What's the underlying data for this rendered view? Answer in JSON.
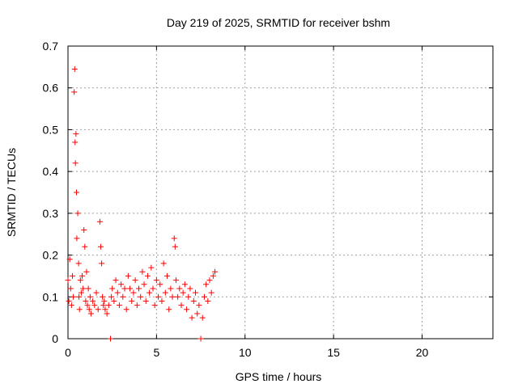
{
  "chart_data": {
    "type": "scatter",
    "title": "Day 219 of 2025, SRMTID for receiver bshm",
    "xlabel": "GPS time / hours",
    "ylabel": "SRMTID / TECUs",
    "xlim": [
      0,
      24
    ],
    "ylim": [
      0,
      0.7
    ],
    "x_ticks": [
      0,
      5,
      10,
      15,
      20
    ],
    "y_ticks": [
      0,
      0.1,
      0.2,
      0.3,
      0.4,
      0.5,
      0.6,
      0.7
    ],
    "y_tick_labels": [
      "0",
      "0.1",
      "0.2",
      "0.3",
      "0.4",
      "0.5",
      "0.6",
      "0.7"
    ],
    "grid": true,
    "legend": "none",
    "marker": "+",
    "color": "#ff0000",
    "series": [
      {
        "x": [
          0.0,
          0.05,
          0.1,
          0.15,
          0.2,
          0.25,
          0.3,
          0.35,
          0.38,
          0.4,
          0.42,
          0.45,
          0.48,
          0.5,
          0.55,
          0.6,
          0.62,
          0.65,
          0.7,
          0.75,
          0.8,
          0.85,
          0.9,
          0.95,
          1.0,
          1.05,
          1.1,
          1.15,
          1.2,
          1.25,
          1.3,
          1.4,
          1.5,
          1.6,
          1.7,
          1.8,
          1.85,
          1.9,
          1.95,
          2.0,
          2.05,
          2.1,
          2.2,
          2.3,
          2.4,
          2.45,
          2.5,
          2.6,
          2.7,
          2.8,
          2.9,
          3.0,
          3.1,
          3.2,
          3.3,
          3.4,
          3.5,
          3.6,
          3.7,
          3.8,
          3.9,
          4.0,
          4.1,
          4.2,
          4.3,
          4.4,
          4.5,
          4.6,
          4.7,
          4.8,
          4.9,
          5.0,
          5.1,
          5.2,
          5.3,
          5.4,
          5.5,
          5.6,
          5.7,
          5.8,
          5.9,
          6.0,
          6.05,
          6.1,
          6.2,
          6.3,
          6.4,
          6.5,
          6.6,
          6.7,
          6.8,
          6.9,
          7.0,
          7.1,
          7.2,
          7.3,
          7.4,
          7.5,
          7.6,
          7.7,
          7.8,
          7.9,
          8.0,
          8.1,
          8.2,
          8.3
        ],
        "y": [
          0.14,
          0.09,
          0.19,
          0.12,
          0.08,
          0.15,
          0.1,
          0.59,
          0.645,
          0.47,
          0.42,
          0.49,
          0.35,
          0.24,
          0.3,
          0.18,
          0.1,
          0.07,
          0.14,
          0.11,
          0.15,
          0.12,
          0.26,
          0.22,
          0.09,
          0.16,
          0.08,
          0.12,
          0.07,
          0.1,
          0.06,
          0.09,
          0.08,
          0.11,
          0.07,
          0.28,
          0.22,
          0.18,
          0.1,
          0.08,
          0.09,
          0.07,
          0.06,
          0.08,
          0.0,
          0.1,
          0.12,
          0.09,
          0.14,
          0.11,
          0.08,
          0.13,
          0.1,
          0.12,
          0.07,
          0.15,
          0.12,
          0.09,
          0.11,
          0.14,
          0.08,
          0.12,
          0.1,
          0.16,
          0.13,
          0.09,
          0.15,
          0.11,
          0.17,
          0.12,
          0.08,
          0.14,
          0.1,
          0.13,
          0.09,
          0.18,
          0.11,
          0.15,
          0.07,
          0.12,
          0.1,
          0.24,
          0.22,
          0.14,
          0.1,
          0.12,
          0.08,
          0.11,
          0.13,
          0.07,
          0.1,
          0.12,
          0.05,
          0.09,
          0.11,
          0.06,
          0.08,
          0.0,
          0.05,
          0.1,
          0.13,
          0.09,
          0.14,
          0.11,
          0.15,
          0.16
        ]
      }
    ]
  }
}
